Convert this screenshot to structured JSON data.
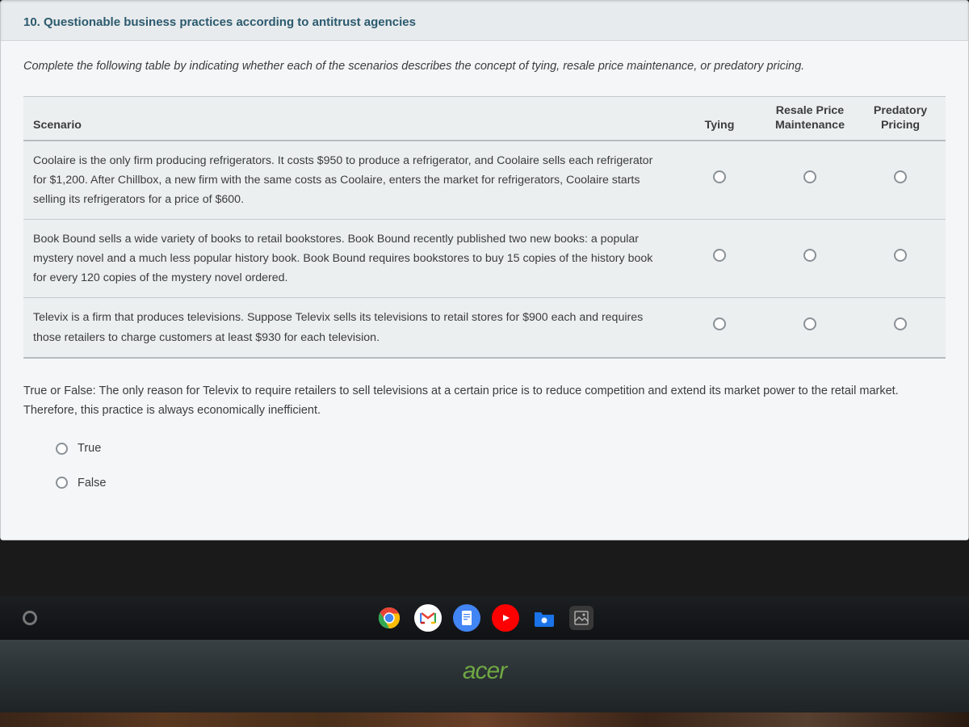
{
  "question": {
    "number_title": "10. Questionable business practices according to antitrust agencies",
    "instructions": "Complete the following table by indicating whether each of the scenarios describes the concept of tying, resale price maintenance, or predatory pricing."
  },
  "table": {
    "headers": {
      "scenario": "Scenario",
      "tying": "Tying",
      "rpm_line1": "Resale Price",
      "rpm_line2": "Maintenance",
      "pred_line1": "Predatory",
      "pred_line2": "Pricing"
    },
    "rows": [
      {
        "text": "Coolaire is the only firm producing refrigerators. It costs $950 to produce a refrigerator, and Coolaire sells each refrigerator for $1,200. After Chillbox, a new firm with the same costs as Coolaire, enters the market for refrigerators, Coolaire starts selling its refrigerators for a price of $600."
      },
      {
        "text": "Book Bound sells a wide variety of books to retail bookstores. Book Bound recently published two new books: a popular mystery novel and a much less popular history book. Book Bound requires bookstores to buy 15 copies of the history book for every 120 copies of the mystery novel ordered."
      },
      {
        "text": "Televix is a firm that produces televisions. Suppose Televix sells its televisions to retail stores for $900 each and requires those retailers to charge customers at least $930 for each television."
      }
    ]
  },
  "true_false": {
    "prompt": "True or False: The only reason for Televix to require retailers to sell televisions at a certain price is to reduce competition and extend its market power to the retail market. Therefore, this practice is always economically inefficient.",
    "true_label": "True",
    "false_label": "False"
  },
  "branding": {
    "laptop": "acer"
  },
  "taskbar_icons": {
    "chrome_colors": [
      "#ea4335",
      "#fbbc05",
      "#34a853",
      "#4285f4"
    ],
    "gmail_bg": "#ffffff",
    "docs_bg": "#4285f4",
    "youtube_bg": "#ff0000",
    "files_bg": "#1a73e8",
    "gallery_bg": "#5f6368"
  }
}
